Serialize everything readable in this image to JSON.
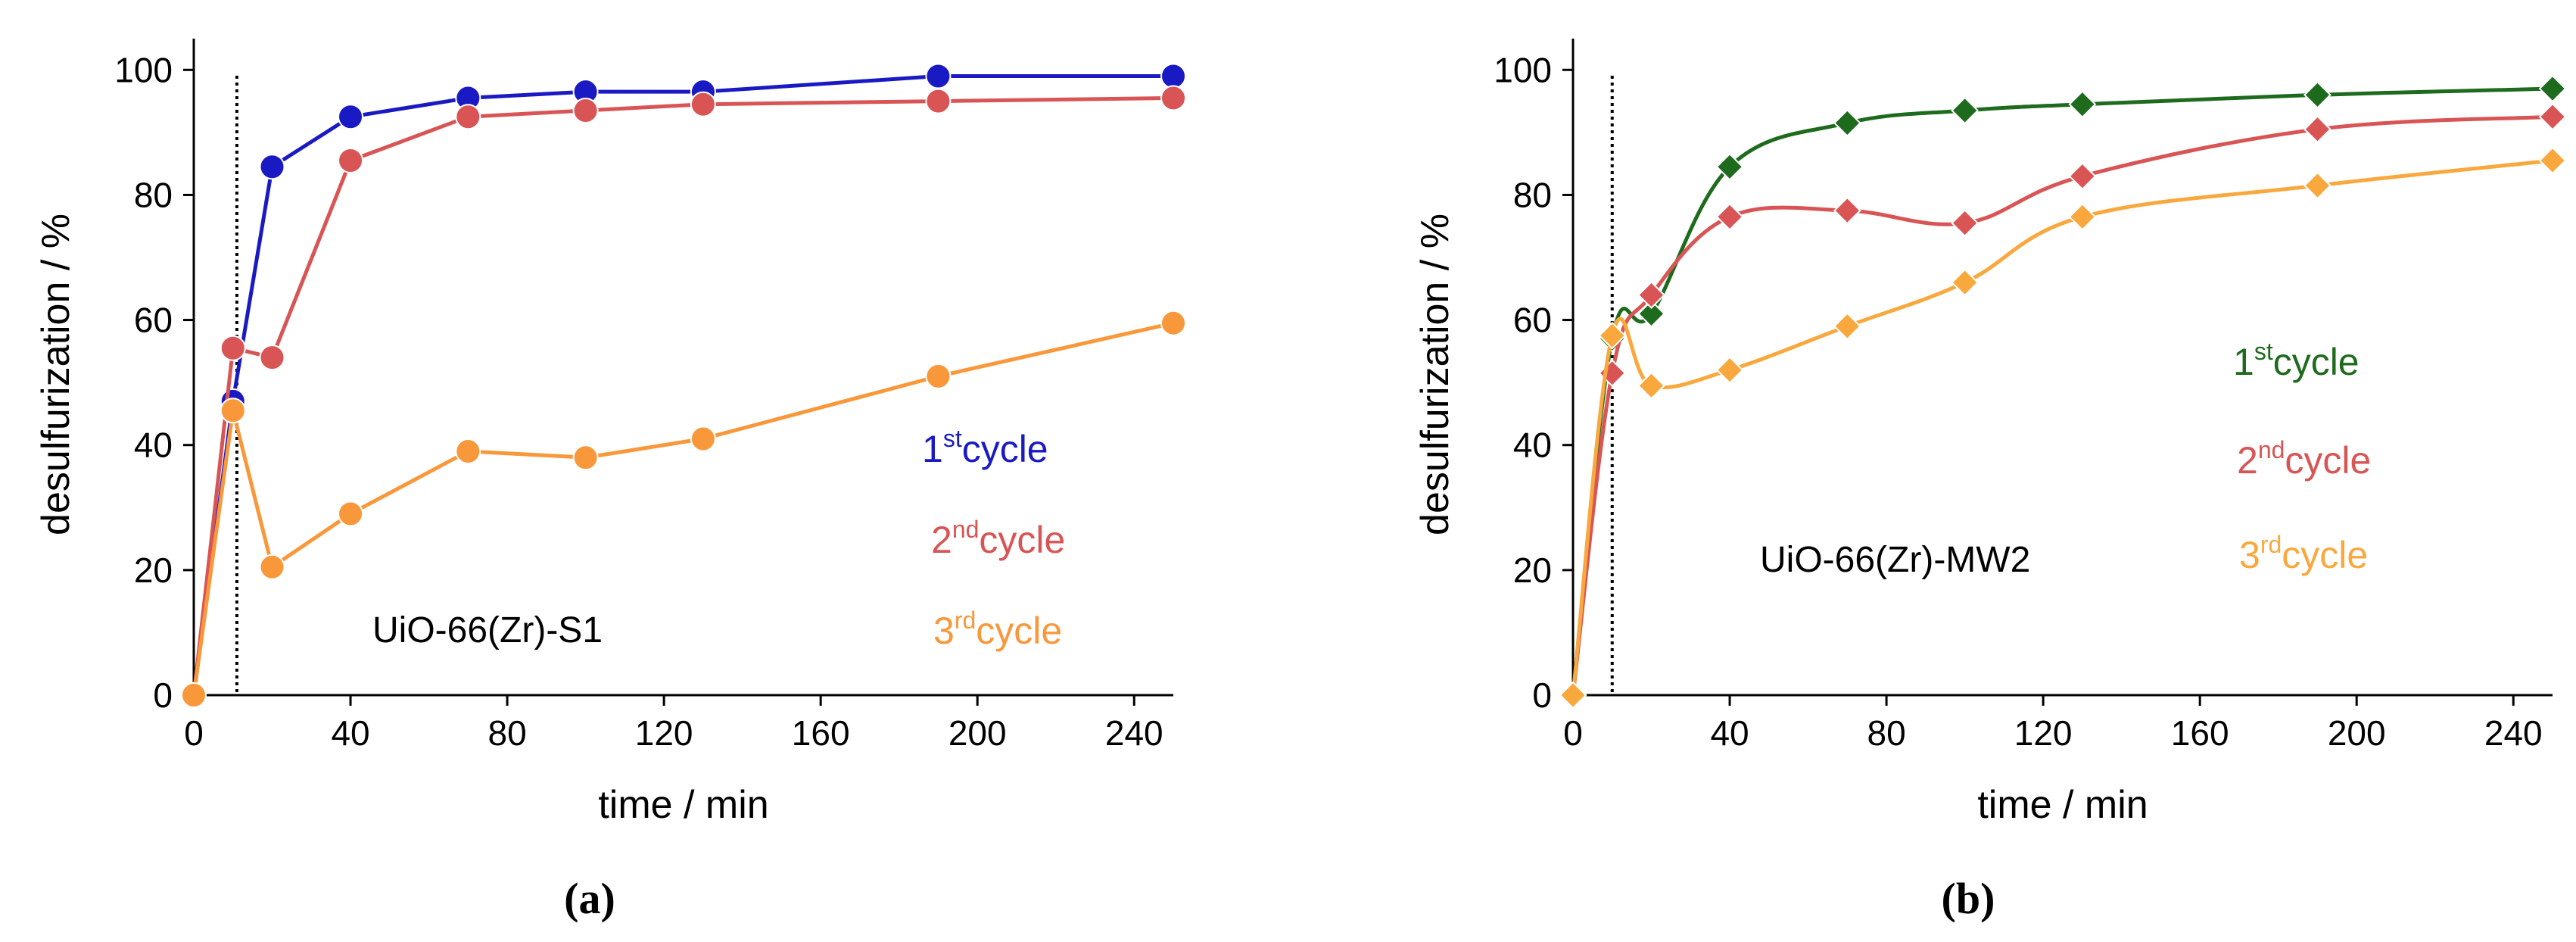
{
  "chart_data": [
    {
      "type": "line",
      "panel_label": "(a)",
      "sample_label": "UiO-66(Zr)-S1",
      "marker": "circle",
      "smooth": false,
      "xlabel": "time / min",
      "ylabel": "desulfurization / %",
      "xlim": [
        0,
        250
      ],
      "ylim": [
        0,
        105
      ],
      "xticks": [
        0,
        40,
        80,
        120,
        160,
        200,
        240
      ],
      "yticks": [
        0,
        20,
        40,
        60,
        80,
        100
      ],
      "vline_x": 11,
      "x": [
        0,
        10,
        20,
        40,
        70,
        100,
        130,
        190,
        250
      ],
      "series": [
        {
          "name_num": "1",
          "name_sup": "st",
          "name_rest": "cycle",
          "color": "#1a1ac4",
          "values": [
            0,
            47,
            84.5,
            92.5,
            95.5,
            96.5,
            96.5,
            99,
            99
          ]
        },
        {
          "name_num": "2",
          "name_sup": "nd",
          "name_rest": "cycle",
          "color": "#d95555",
          "values": [
            0,
            55.5,
            54,
            85.5,
            92.5,
            93.5,
            94.5,
            95,
            95.5
          ]
        },
        {
          "name_num": "3",
          "name_sup": "rd",
          "name_rest": "cycle",
          "color": "#f9983a",
          "values": [
            0,
            45.5,
            20.5,
            29,
            39,
            38,
            41,
            51,
            59.5
          ]
        }
      ]
    },
    {
      "type": "line",
      "panel_label": "(b)",
      "sample_label": "UiO-66(Zr)-MW2",
      "marker": "diamond",
      "smooth": true,
      "xlabel": "time / min",
      "ylabel": "desulfurization / %",
      "xlim": [
        0,
        250
      ],
      "ylim": [
        0,
        105
      ],
      "xticks": [
        0,
        40,
        80,
        120,
        160,
        200,
        240
      ],
      "yticks": [
        0,
        20,
        40,
        60,
        80,
        100
      ],
      "vline_x": 10,
      "x": [
        0,
        10,
        20,
        40,
        70,
        100,
        130,
        190,
        250
      ],
      "series": [
        {
          "name_num": "1",
          "name_sup": "st",
          "name_rest": "cycle",
          "color": "#1e6b1e",
          "values": [
            0,
            57,
            61,
            84.5,
            91.5,
            93.5,
            94.5,
            96,
            97
          ]
        },
        {
          "name_num": "2",
          "name_sup": "nd",
          "name_rest": "cycle",
          "color": "#d95555",
          "values": [
            0,
            51.5,
            64,
            76.5,
            77.5,
            75.5,
            83,
            90.5,
            92.5
          ]
        },
        {
          "name_num": "3",
          "name_sup": "rd",
          "name_rest": "cycle",
          "color": "#f9a83e",
          "values": [
            0,
            57.5,
            49.5,
            52,
            59,
            66,
            76.5,
            81.5,
            85.5
          ]
        }
      ]
    }
  ]
}
